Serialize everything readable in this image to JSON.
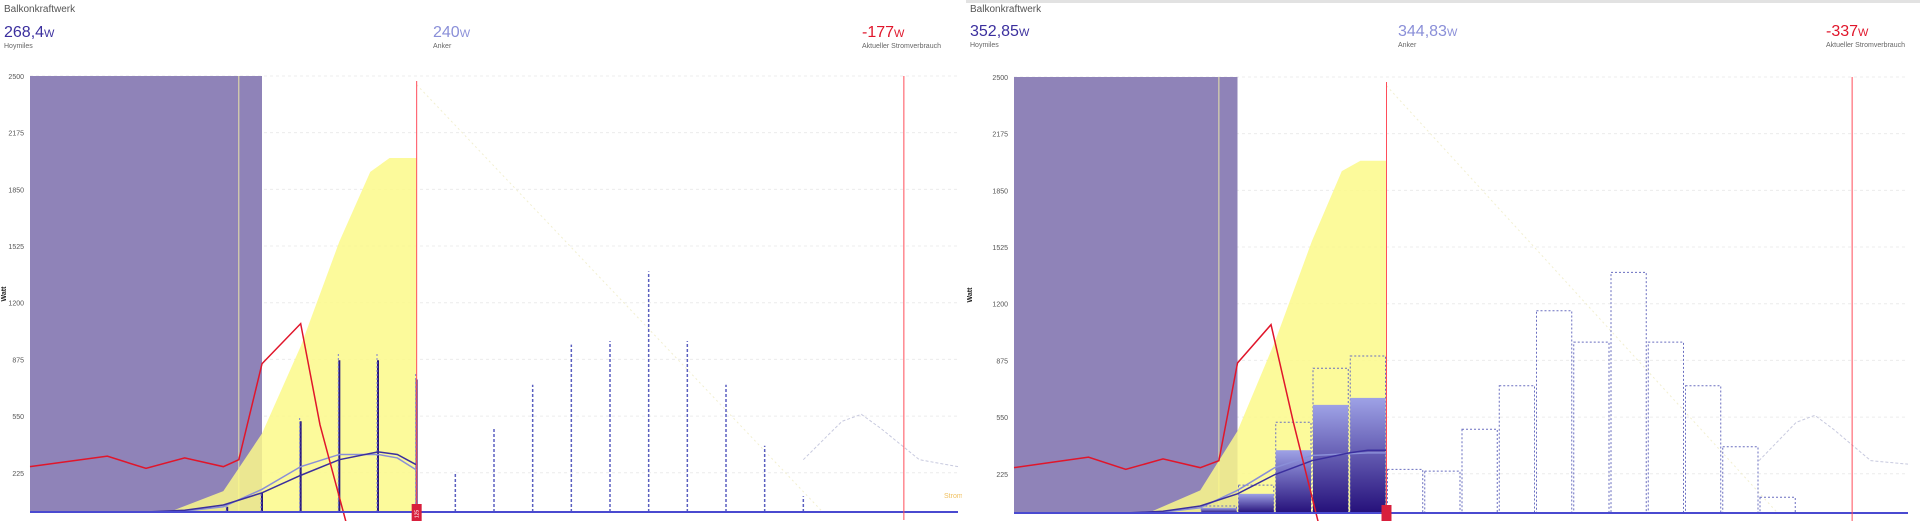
{
  "colors": {
    "hoymiles": "#3b2f9e",
    "anker": "#8a8fd8",
    "consumption": "#e0162b",
    "night_band": "#8f83b8",
    "solar_fill": "#fbf98a",
    "now_line": "#ff4d5a"
  },
  "panels": [
    {
      "title": "Balkonkraftwerk",
      "stats": [
        {
          "value": "268,4",
          "unit": "W",
          "label": "Hoymiles"
        },
        {
          "value": "240",
          "unit": "W",
          "label": "Anker"
        },
        {
          "value": "-177",
          "unit": "W",
          "label": "Aktueller Stromverbrauch"
        }
      ],
      "stray_label": "Strom",
      "chart_data": {
        "type": "bar",
        "ylabel": "Watt",
        "ylim": [
          0,
          2500
        ],
        "yticks": [
          "2500",
          "2175",
          "1850",
          "1525",
          "1200",
          "875",
          "550",
          "225"
        ],
        "x": [
          0,
          24
        ],
        "night_band": [
          0,
          6
        ],
        "night_line": 5.4,
        "now": 10.0,
        "now_badge": "125",
        "future_line": 22.6,
        "forecast": {
          "type": "area",
          "x": [
            3.6,
            5.0,
            6.0,
            7.0,
            8.0,
            8.8,
            9.3,
            10.0
          ],
          "values": [
            0,
            120,
            450,
            950,
            1550,
            1950,
            2030,
            2030
          ]
        },
        "consumption": {
          "type": "line",
          "x": [
            0,
            1,
            2,
            3,
            4,
            5,
            5.4,
            6.0,
            7.0,
            7.5,
            8.2
          ],
          "values": [
            260,
            290,
            320,
            250,
            310,
            260,
            300,
            850,
            1080,
            500,
            -80
          ]
        },
        "hoymiles_series": {
          "type": "line",
          "x": [
            0,
            3,
            4,
            5,
            6,
            7,
            8,
            9,
            9.5,
            10
          ],
          "values": [
            0,
            0,
            10,
            40,
            110,
            210,
            300,
            345,
            330,
            270
          ]
        },
        "anker_series": {
          "type": "line",
          "x": [
            0,
            3,
            4,
            5,
            6,
            7,
            8,
            9,
            9.5,
            10
          ],
          "values": [
            0,
            0,
            5,
            30,
            130,
            260,
            330,
            330,
            310,
            240
          ]
        },
        "dark_spikes": {
          "x": [
            5.1,
            6.0,
            7.0,
            8.0,
            9.0,
            10.0
          ],
          "values": [
            30,
            110,
            520,
            870,
            870,
            760
          ]
        },
        "bars_outline": {
          "x": [
            11,
            12,
            13,
            14,
            15,
            16,
            17,
            18,
            19,
            20
          ],
          "values": [
            230,
            480,
            730,
            960,
            980,
            1380,
            980,
            730,
            380,
            90
          ]
        },
        "forecast_ghost": {
          "type": "line",
          "x": [
            20,
            21,
            21.5,
            22,
            23,
            24
          ],
          "values": [
            300,
            520,
            560,
            480,
            300,
            260
          ]
        }
      }
    },
    {
      "title": "Balkonkraftwerk",
      "stats": [
        {
          "value": "352,85",
          "unit": "W",
          "label": "Hoymiles"
        },
        {
          "value": "344,83",
          "unit": "W",
          "label": "Anker"
        },
        {
          "value": "-337",
          "unit": "W",
          "label": "Aktueller Stromverbrauch"
        }
      ],
      "chart_data": {
        "type": "bar",
        "ylabel": "Watt",
        "ylim": [
          0,
          2500
        ],
        "yticks": [
          "2500",
          "2175",
          "1850",
          "1525",
          "1200",
          "875",
          "550",
          "225"
        ],
        "x": [
          0,
          24
        ],
        "night_band": [
          0,
          6
        ],
        "night_line": 5.5,
        "now": 10.0,
        "future_line": 22.5,
        "forecast": {
          "type": "area",
          "x": [
            3.6,
            5.0,
            6.0,
            7.0,
            8.0,
            8.8,
            9.3,
            10.0
          ],
          "values": [
            0,
            130,
            470,
            980,
            1560,
            1960,
            2020,
            2020
          ]
        },
        "consumption": {
          "type": "line",
          "x": [
            0,
            1,
            2,
            3,
            4,
            5,
            5.5,
            6.0,
            6.9,
            7.5,
            8.2
          ],
          "values": [
            260,
            290,
            320,
            250,
            310,
            260,
            300,
            860,
            1080,
            520,
            -80
          ]
        },
        "hoymiles_series": {
          "type": "line",
          "x": [
            0,
            3,
            4,
            5,
            6,
            7,
            8,
            9,
            9.5,
            10
          ],
          "values": [
            0,
            0,
            10,
            40,
            110,
            220,
            300,
            345,
            360,
            360
          ]
        },
        "anker_series": {
          "type": "line",
          "x": [
            0,
            3,
            4,
            5,
            6,
            7,
            8,
            9,
            9.5,
            10
          ],
          "values": [
            0,
            0,
            5,
            30,
            130,
            260,
            330,
            340,
            345,
            345
          ]
        },
        "stacked_bars": {
          "x": [
            5,
            6,
            7,
            8,
            9
          ],
          "values": [
            30,
            110,
            360,
            620,
            660
          ]
        },
        "stacked_outline": {
          "x": [
            5,
            6,
            7,
            8,
            9
          ],
          "values": [
            40,
            160,
            520,
            830,
            900
          ]
        },
        "bars_outline": {
          "x": [
            10,
            11,
            12,
            13,
            14,
            15,
            16,
            17,
            18,
            19,
            20
          ],
          "values": [
            250,
            240,
            480,
            730,
            1160,
            980,
            1380,
            980,
            730,
            380,
            90
          ]
        },
        "forecast_ghost": {
          "type": "line",
          "x": [
            20,
            21,
            21.5,
            22,
            23,
            24
          ],
          "values": [
            300,
            520,
            560,
            480,
            300,
            280
          ]
        }
      }
    }
  ]
}
